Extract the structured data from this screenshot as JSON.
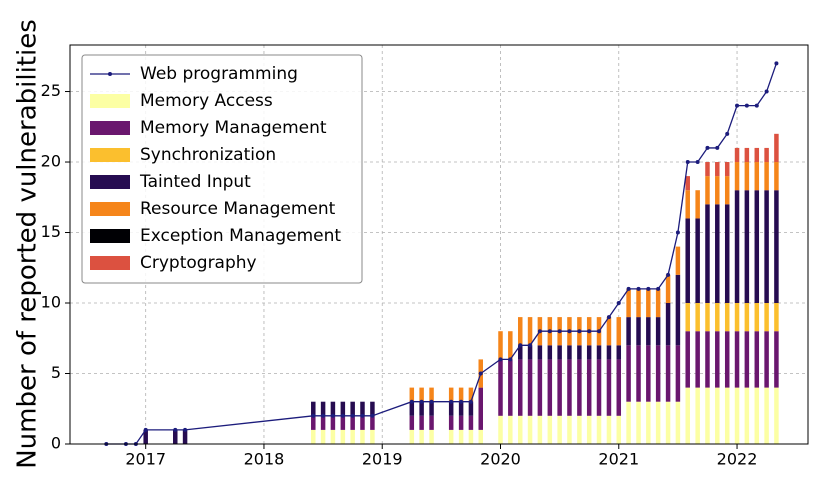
{
  "chart_data": {
    "type": "stacked-bar-line",
    "y_label": "Number of reported vulnerabilities",
    "x": [
      2016.667,
      2016.833,
      2016.917,
      2017.0,
      2017.25,
      2017.333,
      2018.417,
      2018.5,
      2018.583,
      2018.667,
      2018.75,
      2018.833,
      2018.917,
      2019.25,
      2019.333,
      2019.417,
      2019.583,
      2019.667,
      2019.75,
      2019.833,
      2020.0,
      2020.083,
      2020.167,
      2020.25,
      2020.333,
      2020.417,
      2020.5,
      2020.583,
      2020.667,
      2020.75,
      2020.833,
      2020.917,
      2021.0,
      2021.083,
      2021.167,
      2021.25,
      2021.333,
      2021.417,
      2021.5,
      2021.583,
      2021.667,
      2021.75,
      2021.833,
      2021.917,
      2022.0,
      2022.083,
      2022.167,
      2022.25,
      2022.333
    ],
    "series": [
      {
        "name": "Web programming",
        "kind": "line",
        "color": "#1c1c7c",
        "values": [
          0,
          0,
          0,
          1,
          1,
          1,
          2,
          2,
          2,
          2,
          2,
          2,
          2,
          3,
          3,
          3,
          3,
          3,
          3,
          5,
          6,
          6,
          7,
          7,
          8,
          8,
          8,
          8,
          8,
          8,
          8,
          9,
          10,
          11,
          11,
          11,
          11,
          12,
          15,
          20,
          20,
          21,
          21,
          22,
          24,
          24,
          24,
          25,
          27
        ]
      },
      {
        "name": "Memory Access",
        "kind": "bar",
        "color": "#fcffa4",
        "values": [
          0,
          0,
          0,
          0,
          0,
          0,
          1,
          1,
          1,
          1,
          1,
          1,
          1,
          1,
          1,
          1,
          1,
          1,
          1,
          1,
          2,
          2,
          2,
          2,
          2,
          2,
          2,
          2,
          2,
          2,
          2,
          2,
          2,
          3,
          3,
          3,
          3,
          3,
          3,
          4,
          4,
          4,
          4,
          4,
          4,
          4,
          4,
          4,
          4
        ]
      },
      {
        "name": "Memory Management",
        "kind": "bar",
        "color": "#6a176e",
        "values": [
          0,
          0,
          0,
          0,
          0,
          0,
          1,
          1,
          1,
          1,
          1,
          1,
          1,
          1,
          1,
          1,
          1,
          1,
          1,
          3,
          4,
          4,
          4,
          4,
          4,
          4,
          4,
          4,
          4,
          4,
          4,
          4,
          4,
          4,
          4,
          4,
          4,
          4,
          4,
          4,
          4,
          4,
          4,
          4,
          4,
          4,
          4,
          4,
          4
        ]
      },
      {
        "name": "Synchronization",
        "kind": "bar",
        "color": "#fbbf2e",
        "values": [
          0,
          0,
          0,
          0,
          0,
          0,
          0,
          0,
          0,
          0,
          0,
          0,
          0,
          0,
          0,
          0,
          0,
          0,
          0,
          0,
          0,
          0,
          0,
          0,
          0,
          0,
          0,
          0,
          0,
          0,
          0,
          0,
          0,
          0,
          0,
          0,
          0,
          0,
          0,
          2,
          2,
          2,
          2,
          2,
          2,
          2,
          2,
          2,
          2
        ]
      },
      {
        "name": "Tainted Input",
        "kind": "bar",
        "color": "#260c51",
        "values": [
          0,
          0,
          0,
          1,
          1,
          1,
          1,
          1,
          1,
          1,
          1,
          1,
          1,
          1,
          1,
          1,
          1,
          1,
          1,
          0,
          0,
          0,
          1,
          1,
          1,
          1,
          1,
          1,
          1,
          1,
          1,
          1,
          1,
          2,
          2,
          2,
          2,
          3,
          5,
          6,
          6,
          7,
          7,
          7,
          8,
          8,
          8,
          8,
          8
        ]
      },
      {
        "name": "Resource Management",
        "kind": "bar",
        "color": "#f5851a",
        "values": [
          0,
          0,
          0,
          0,
          0,
          0,
          0,
          0,
          0,
          0,
          0,
          0,
          0,
          1,
          1,
          1,
          1,
          1,
          1,
          2,
          2,
          2,
          2,
          2,
          2,
          2,
          2,
          2,
          2,
          2,
          2,
          2,
          2,
          2,
          2,
          2,
          2,
          2,
          2,
          2,
          2,
          2,
          2,
          2,
          2,
          2,
          2,
          2,
          2
        ]
      },
      {
        "name": "Exception Management",
        "kind": "bar",
        "color": "#000004",
        "values": [
          0,
          0,
          0,
          0,
          0,
          0,
          0,
          0,
          0,
          0,
          0,
          0,
          0,
          0,
          0,
          0,
          0,
          0,
          0,
          0,
          0,
          0,
          0,
          0,
          0,
          0,
          0,
          0,
          0,
          0,
          0,
          0,
          0,
          0,
          0,
          0,
          0,
          0,
          0,
          0,
          0,
          0,
          0,
          0,
          0,
          0,
          0,
          0,
          0
        ]
      },
      {
        "name": "Cryptography",
        "kind": "bar",
        "color": "#dc5140",
        "values": [
          0,
          0,
          0,
          0,
          0,
          0,
          0,
          0,
          0,
          0,
          0,
          0,
          0,
          0,
          0,
          0,
          0,
          0,
          0,
          0,
          0,
          0,
          0,
          0,
          0,
          0,
          0,
          0,
          0,
          0,
          0,
          0,
          0,
          0,
          0,
          0,
          0,
          0,
          0,
          1,
          0,
          1,
          1,
          1,
          1,
          1,
          1,
          1,
          2
        ]
      }
    ],
    "xlim": [
      2016.36,
      2022.6
    ],
    "xticks": [
      2017,
      2018,
      2019,
      2020,
      2021,
      2022
    ],
    "ylim": [
      0,
      28.3
    ],
    "yticks": [
      0,
      5,
      10,
      15,
      20,
      25
    ],
    "grid": true,
    "legend": "upper left"
  }
}
